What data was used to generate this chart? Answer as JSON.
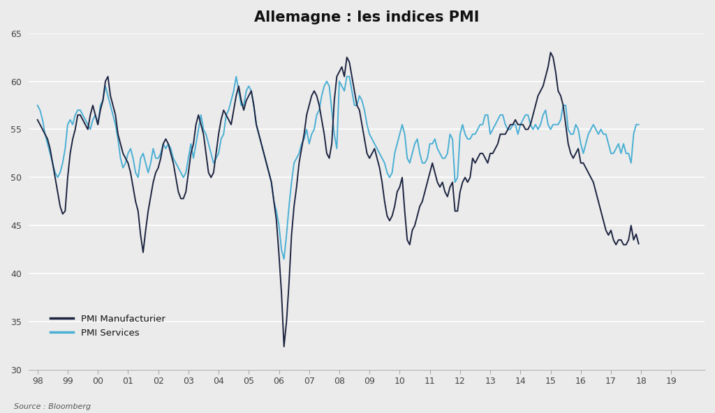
{
  "title": "Allemagne : les indices PMI",
  "source": "Source : Bloomberg",
  "legend_manufacturing": "PMI Manufacturier",
  "legend_services": "PMI Services",
  "color_manufacturing": "#1c2340",
  "color_services": "#4aafd4",
  "background_color": "#ebebeb",
  "plot_background": "#ebebeb",
  "ylim": [
    30,
    65
  ],
  "yticks": [
    30,
    35,
    40,
    45,
    50,
    55,
    60,
    65
  ],
  "title_fontsize": 15,
  "pmi_manufacturing": [
    56.0,
    55.5,
    55.0,
    54.5,
    54.0,
    53.0,
    51.5,
    50.0,
    48.5,
    47.0,
    46.2,
    46.5,
    50.0,
    52.5,
    54.0,
    55.0,
    56.5,
    56.5,
    56.0,
    55.5,
    55.0,
    56.5,
    57.5,
    56.5,
    55.5,
    57.0,
    58.0,
    60.0,
    60.5,
    58.5,
    57.5,
    56.5,
    54.5,
    53.5,
    52.5,
    52.0,
    51.5,
    50.5,
    49.0,
    47.5,
    46.5,
    44.0,
    42.2,
    44.5,
    46.5,
    48.0,
    49.5,
    50.5,
    51.0,
    52.0,
    53.5,
    54.0,
    53.5,
    52.5,
    51.5,
    50.0,
    48.5,
    47.8,
    47.8,
    48.5,
    50.5,
    52.5,
    53.5,
    55.5,
    56.5,
    55.5,
    54.5,
    52.5,
    50.5,
    50.0,
    50.5,
    52.5,
    54.5,
    56.0,
    57.0,
    56.5,
    56.0,
    55.5,
    57.0,
    58.5,
    59.5,
    58.0,
    57.0,
    58.0,
    58.5,
    59.0,
    57.5,
    55.5,
    54.5,
    53.5,
    52.5,
    51.5,
    50.5,
    49.5,
    47.5,
    45.5,
    42.0,
    38.0,
    32.4,
    35.0,
    39.0,
    44.0,
    47.0,
    49.0,
    51.5,
    53.0,
    54.5,
    56.5,
    57.5,
    58.5,
    59.0,
    58.5,
    57.5,
    56.0,
    54.5,
    52.5,
    52.0,
    53.5,
    58.0,
    60.5,
    61.0,
    61.5,
    60.5,
    62.5,
    62.0,
    60.5,
    59.0,
    57.5,
    57.0,
    55.5,
    54.0,
    52.5,
    52.0,
    52.5,
    53.0,
    52.0,
    51.0,
    49.5,
    47.5,
    46.0,
    45.5,
    46.0,
    47.0,
    48.5,
    49.0,
    50.0,
    46.5,
    43.5,
    43.0,
    44.5,
    45.0,
    46.0,
    47.0,
    47.5,
    48.5,
    49.5,
    50.5,
    51.5,
    50.5,
    49.5,
    49.0,
    49.5,
    48.5,
    48.0,
    49.0,
    49.5,
    46.5,
    46.5,
    48.5,
    49.5,
    50.0,
    49.5,
    50.0,
    52.0,
    51.5,
    52.0,
    52.5,
    52.5,
    52.0,
    51.5,
    52.5,
    52.5,
    53.0,
    53.5,
    54.5,
    54.5,
    54.5,
    55.0,
    55.5,
    55.5,
    56.0,
    55.5,
    55.5,
    55.5,
    55.0,
    55.0,
    55.5,
    56.5,
    57.5,
    58.5,
    59.0,
    59.5,
    60.5,
    61.5,
    63.0,
    62.5,
    61.0,
    59.0,
    58.5,
    57.5,
    55.5,
    53.5,
    52.5,
    52.0,
    52.5,
    53.0,
    51.5,
    51.5,
    51.0,
    50.5,
    50.0,
    49.5,
    48.5,
    47.5,
    46.5,
    45.5,
    44.5,
    44.0,
    44.5,
    43.5,
    43.0,
    43.5,
    43.5,
    43.0,
    43.0,
    43.5,
    45.0,
    43.5,
    44.1,
    43.1
  ],
  "pmi_services": [
    57.5,
    57.0,
    56.0,
    54.5,
    53.5,
    52.5,
    51.5,
    50.5,
    50.0,
    50.5,
    51.5,
    53.0,
    55.5,
    56.0,
    55.5,
    56.5,
    57.0,
    57.0,
    56.5,
    56.0,
    55.5,
    55.0,
    56.0,
    56.5,
    55.5,
    57.5,
    58.0,
    59.5,
    58.5,
    57.5,
    56.5,
    55.5,
    54.0,
    52.0,
    51.0,
    51.5,
    52.5,
    53.0,
    52.0,
    50.5,
    50.0,
    52.0,
    52.5,
    51.5,
    50.5,
    51.5,
    53.0,
    52.0,
    52.0,
    52.5,
    53.5,
    53.0,
    53.5,
    53.0,
    52.0,
    51.5,
    51.0,
    50.5,
    50.0,
    50.5,
    52.0,
    53.5,
    52.0,
    53.5,
    55.0,
    56.5,
    55.0,
    54.5,
    53.5,
    52.5,
    51.5,
    52.0,
    52.5,
    54.0,
    54.5,
    56.5,
    57.0,
    58.0,
    59.0,
    60.5,
    59.0,
    57.5,
    57.5,
    59.0,
    59.5,
    59.0,
    57.5,
    55.5,
    54.5,
    53.5,
    52.5,
    51.5,
    50.5,
    49.5,
    47.5,
    46.5,
    45.0,
    42.5,
    41.5,
    44.0,
    47.0,
    49.5,
    51.5,
    52.0,
    52.5,
    53.5,
    54.0,
    55.0,
    53.5,
    54.5,
    55.0,
    56.5,
    57.0,
    58.5,
    59.5,
    60.0,
    59.5,
    57.0,
    54.5,
    53.0,
    60.0,
    59.5,
    59.0,
    60.5,
    60.5,
    59.0,
    57.5,
    57.5,
    58.5,
    58.0,
    57.0,
    55.5,
    54.5,
    54.0,
    53.5,
    53.0,
    52.5,
    52.0,
    51.5,
    50.5,
    50.0,
    50.5,
    52.5,
    53.5,
    54.5,
    55.5,
    54.5,
    52.0,
    51.5,
    52.5,
    53.5,
    54.0,
    52.5,
    51.5,
    51.5,
    52.0,
    53.5,
    53.5,
    54.0,
    53.0,
    52.5,
    52.0,
    52.0,
    52.5,
    54.5,
    54.0,
    49.5,
    50.0,
    54.5,
    55.5,
    54.5,
    54.0,
    54.0,
    54.5,
    54.5,
    55.0,
    55.5,
    55.5,
    56.5,
    56.5,
    54.5,
    55.0,
    55.5,
    56.0,
    56.5,
    56.5,
    55.5,
    55.0,
    55.0,
    55.5,
    55.5,
    54.5,
    55.5,
    56.0,
    56.5,
    56.5,
    55.5,
    55.0,
    55.5,
    55.0,
    55.5,
    56.5,
    57.0,
    55.5,
    55.0,
    55.5,
    55.5,
    55.5,
    56.0,
    57.5,
    57.5,
    55.0,
    54.5,
    54.5,
    55.5,
    55.0,
    53.5,
    52.5,
    53.5,
    54.5,
    55.0,
    55.5,
    55.0,
    54.5,
    55.0,
    54.5,
    54.5,
    53.5,
    52.5,
    52.5,
    53.0,
    53.5,
    52.5,
    53.5,
    52.5,
    52.5,
    51.5,
    54.5,
    55.5,
    55.5
  ]
}
